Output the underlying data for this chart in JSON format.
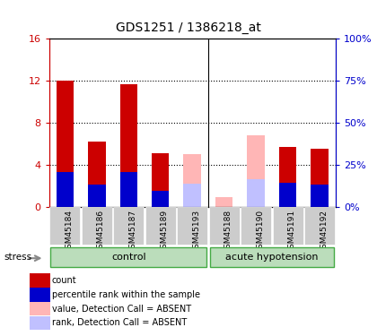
{
  "title": "GDS1251 / 1386218_at",
  "samples": [
    "GSM45184",
    "GSM45186",
    "GSM45187",
    "GSM45189",
    "GSM45193",
    "GSM45188",
    "GSM45190",
    "GSM45191",
    "GSM45192"
  ],
  "red_values": [
    12.0,
    6.2,
    11.7,
    5.1,
    0.05,
    0.8,
    0.0,
    5.7,
    5.5
  ],
  "blue_values": [
    3.3,
    2.1,
    3.3,
    1.5,
    2.2,
    0.0,
    2.6,
    2.3,
    2.1
  ],
  "pink_values": [
    0.0,
    0.0,
    0.0,
    0.0,
    5.0,
    0.9,
    6.8,
    0.0,
    0.0
  ],
  "lavender_values": [
    0.0,
    0.0,
    0.0,
    0.0,
    2.2,
    0.0,
    2.6,
    0.0,
    0.0
  ],
  "absent_mask": [
    false,
    false,
    false,
    false,
    true,
    true,
    true,
    false,
    false
  ],
  "ylim_left": [
    0,
    16
  ],
  "ylim_right": [
    0,
    100
  ],
  "yticks_left": [
    0,
    4,
    8,
    12,
    16
  ],
  "yticks_right": [
    0,
    25,
    50,
    75,
    100
  ],
  "yticklabels_left": [
    "0",
    "4",
    "8",
    "12",
    "16"
  ],
  "yticklabels_right": [
    "0%",
    "25%",
    "50%",
    "75%",
    "100%"
  ],
  "color_red": "#CC0000",
  "color_blue": "#0000CC",
  "color_pink": "#FFB6B6",
  "color_lavender": "#C0C0FF",
  "color_green_dark": "#44AA44",
  "color_green_light": "#BBDDBB",
  "group_label_control": "control",
  "group_label_stress": "acute hypotension",
  "stress_label": "stress",
  "control_count": 5,
  "stress_count": 4,
  "legend_entries": [
    {
      "label": "count",
      "color": "#CC0000"
    },
    {
      "label": "percentile rank within the sample",
      "color": "#0000CC"
    },
    {
      "label": "value, Detection Call = ABSENT",
      "color": "#FFB6B6"
    },
    {
      "label": "rank, Detection Call = ABSENT",
      "color": "#C0C0FF"
    }
  ],
  "bar_width": 0.55,
  "figsize": [
    4.2,
    3.75
  ],
  "dpi": 100
}
